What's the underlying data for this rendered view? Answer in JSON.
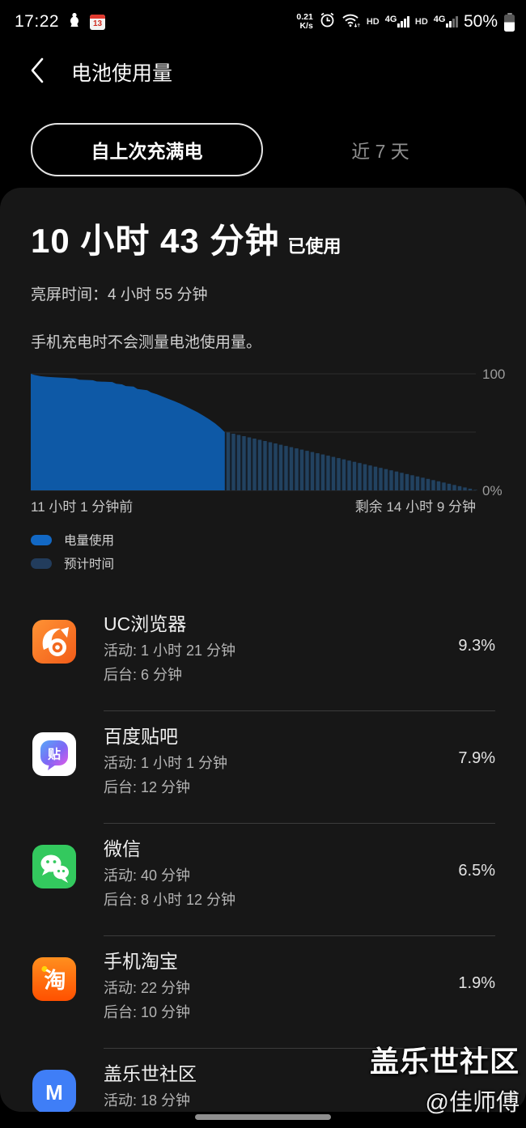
{
  "status_bar": {
    "time": "17:22",
    "calendar_day": "13",
    "net_speed_value": "0.21",
    "net_speed_unit": "K/s",
    "hd1": "HD",
    "net1": "4G",
    "hd2": "HD",
    "net2": "4G",
    "battery_percent": "50%"
  },
  "header": {
    "title": "电池使用量"
  },
  "tabs": [
    {
      "label": "自上次充满电",
      "selected": true
    },
    {
      "label": "近 7 天",
      "selected": false
    }
  ],
  "summary": {
    "duration": "10 小时 43 分钟",
    "duration_suffix": "已使用",
    "screen_time": "亮屏时间：4 小时 55 分钟",
    "note": "手机充电时不会测量电池使用量。"
  },
  "chart_data": {
    "type": "area",
    "title": "电池电量：自上次充满电的使用曲线与预计剩余时间",
    "ylim": [
      0,
      100
    ],
    "grid_levels": [
      100,
      50,
      0
    ],
    "grid_on": true,
    "y_tick_labels": [
      "100",
      "0%"
    ],
    "x_left_label": "11 小时 1 分钟前",
    "x_right_label": "剩余 14 小时 9 分钟",
    "split_frac": 0.436,
    "usage_color": "#0e59a6",
    "prediction_bar_color": "#224260",
    "prediction_base_color": "#141c26",
    "grid_color": "#2e2e2e",
    "tick_color": "#9c9c9c",
    "usage_points": [
      [
        0.0,
        100
      ],
      [
        0.02,
        99
      ],
      [
        0.05,
        98
      ],
      [
        0.08,
        97.5
      ],
      [
        0.12,
        97
      ],
      [
        0.18,
        96.5
      ],
      [
        0.23,
        96
      ],
      [
        0.25,
        95
      ],
      [
        0.32,
        94.5
      ],
      [
        0.34,
        93.5
      ],
      [
        0.42,
        93
      ],
      [
        0.44,
        91.5
      ],
      [
        0.47,
        91
      ],
      [
        0.49,
        89.5
      ],
      [
        0.53,
        89
      ],
      [
        0.55,
        87
      ],
      [
        0.6,
        86
      ],
      [
        0.62,
        84
      ],
      [
        0.65,
        82.5
      ],
      [
        0.68,
        80.5
      ],
      [
        0.71,
        78.5
      ],
      [
        0.74,
        76.5
      ],
      [
        0.77,
        74.5
      ],
      [
        0.8,
        72
      ],
      [
        0.83,
        69.5
      ],
      [
        0.86,
        67
      ],
      [
        0.89,
        64
      ],
      [
        0.92,
        61
      ],
      [
        0.95,
        57.5
      ],
      [
        0.975,
        54
      ],
      [
        1.0,
        50
      ]
    ],
    "prediction": {
      "start_pct": 50,
      "end_pct": 0
    },
    "legend_position": "bottom-left",
    "legend": [
      {
        "label": "电量使用",
        "color": "#1268c4"
      },
      {
        "label": "预计时间",
        "color": "#223c5c"
      }
    ]
  },
  "app_list": [
    {
      "name": "UC浏览器",
      "icon": "uc-browser",
      "active": "活动: 1 小时 21 分钟",
      "background": "后台: 6 分钟",
      "percent": "9.3%"
    },
    {
      "name": "百度贴吧",
      "icon": "baidu-tieba",
      "active": "活动: 1 小时 1 分钟",
      "background": "后台: 12 分钟",
      "percent": "7.9%"
    },
    {
      "name": "微信",
      "icon": "wechat",
      "active": "活动: 40 分钟",
      "background": "后台: 8 小时 12 分钟",
      "percent": "6.5%"
    },
    {
      "name": "手机淘宝",
      "icon": "taobao",
      "active": "活动: 22 分钟",
      "background": "后台: 10 分钟",
      "percent": "1.9%"
    },
    {
      "name": "盖乐世社区",
      "icon": "samsung-members",
      "active": "活动: 18 分钟",
      "background": "",
      "percent": ""
    }
  ],
  "watermark": {
    "line1": "盖乐世社区",
    "line2": "@佳师傅"
  }
}
